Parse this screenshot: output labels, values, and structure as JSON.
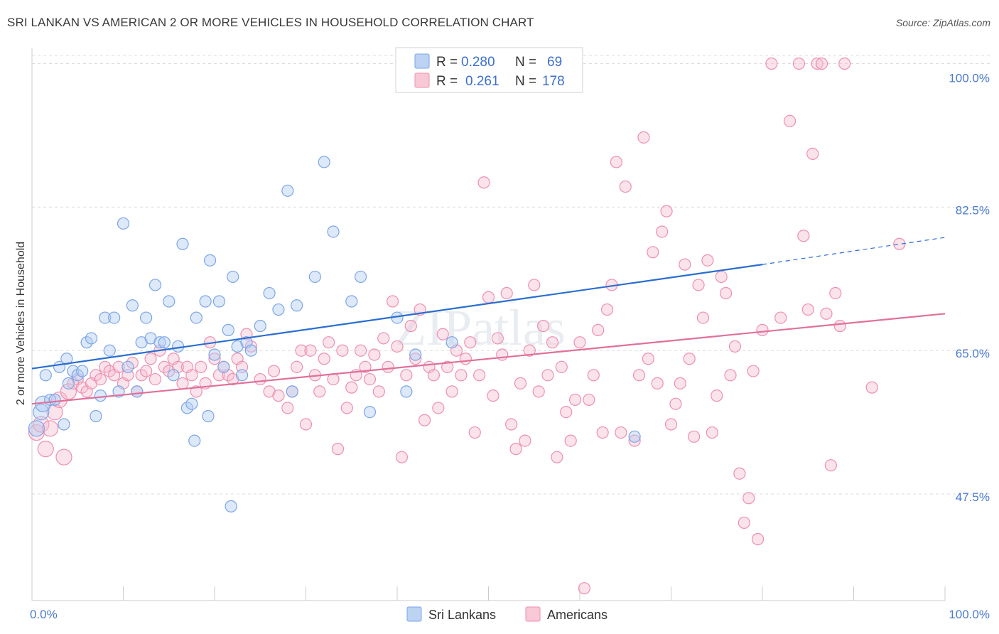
{
  "title": "SRI LANKAN VS AMERICAN 2 OR MORE VEHICLES IN HOUSEHOLD CORRELATION CHART",
  "source": "Source: ZipAtlas.com",
  "watermark": "ZIPatlas",
  "legend_top": {
    "rows": [
      {
        "r_label": "R =",
        "r_value": "0.280",
        "n_label": "N =",
        "n_value": "69",
        "color": "#a9c4ef"
      },
      {
        "r_label": "R =",
        "r_value": "0.261",
        "n_label": "N =",
        "n_value": "178",
        "color": "#f4b3c8"
      }
    ]
  },
  "legend_bottom": [
    {
      "label": "Sri Lankans",
      "color": "#a9c4ef"
    },
    {
      "label": "Americans",
      "color": "#f4b3c8"
    }
  ],
  "chart_data": {
    "type": "scatter",
    "title": "SRI LANKAN VS AMERICAN 2 OR MORE VEHICLES IN HOUSEHOLD CORRELATION CHART",
    "xlabel": "",
    "ylabel": "2 or more Vehicles in Household",
    "xlim": [
      0,
      100
    ],
    "ylim": [
      34.5,
      101
    ],
    "x_tick_labels": [
      "0.0%",
      "100.0%"
    ],
    "y_ticks": [
      47.5,
      65.0,
      82.5,
      100.0
    ],
    "y_tick_labels": [
      "47.5%",
      "65.0%",
      "82.5%",
      "100.0%"
    ],
    "grid": true,
    "colors": {
      "sri_lankans": "#7aa6e8",
      "americans": "#ee8fb0",
      "sri_line": "#2a6dd0",
      "am_line": "#e0709a"
    },
    "series": [
      {
        "name": "Sri Lankans",
        "trend": {
          "x0": 0,
          "y0": 62.8,
          "x1": 80,
          "y1": 75.5,
          "dash_x1": 100,
          "dash_y1": 78.8
        },
        "points": [
          [
            0.5,
            55.5
          ],
          [
            1,
            57.5
          ],
          [
            1.2,
            58.5
          ],
          [
            1.5,
            62
          ],
          [
            2,
            59
          ],
          [
            2.5,
            59
          ],
          [
            3,
            63
          ],
          [
            3.5,
            56
          ],
          [
            3.8,
            64
          ],
          [
            4,
            61
          ],
          [
            4.5,
            62.5
          ],
          [
            5,
            62
          ],
          [
            5.5,
            62.5
          ],
          [
            6,
            66
          ],
          [
            6.5,
            66.5
          ],
          [
            7,
            57
          ],
          [
            7.5,
            59.5
          ],
          [
            8,
            69
          ],
          [
            8.5,
            65
          ],
          [
            9,
            69
          ],
          [
            9.5,
            60
          ],
          [
            10,
            80.5
          ],
          [
            10.5,
            63
          ],
          [
            11,
            70.5
          ],
          [
            11.5,
            60
          ],
          [
            12,
            66
          ],
          [
            12.5,
            69
          ],
          [
            13,
            66.5
          ],
          [
            13.5,
            73
          ],
          [
            14,
            66
          ],
          [
            14.5,
            66
          ],
          [
            15,
            71
          ],
          [
            15.5,
            62
          ],
          [
            16,
            65.5
          ],
          [
            16.5,
            78
          ],
          [
            17,
            58
          ],
          [
            17.5,
            58.5
          ],
          [
            17.8,
            54
          ],
          [
            18,
            69
          ],
          [
            19,
            71
          ],
          [
            19.3,
            57
          ],
          [
            19.5,
            76
          ],
          [
            20,
            64.5
          ],
          [
            20.5,
            71
          ],
          [
            21,
            63
          ],
          [
            21.5,
            67.5
          ],
          [
            21.8,
            46
          ],
          [
            22,
            74
          ],
          [
            22.5,
            65.5
          ],
          [
            23,
            62
          ],
          [
            23.5,
            66
          ],
          [
            24,
            65
          ],
          [
            25,
            68
          ],
          [
            26,
            72
          ],
          [
            27,
            70
          ],
          [
            28,
            84.5
          ],
          [
            28.5,
            60
          ],
          [
            29,
            70.5
          ],
          [
            31,
            74
          ],
          [
            32,
            88
          ],
          [
            33,
            79.5
          ],
          [
            35,
            71
          ],
          [
            36,
            74
          ],
          [
            37,
            57.5
          ],
          [
            40,
            69
          ],
          [
            41,
            60
          ],
          [
            42,
            64.5
          ],
          [
            46,
            66
          ],
          [
            66,
            54.5
          ]
        ]
      },
      {
        "name": "Americans",
        "trend": {
          "x0": 0,
          "y0": 58.5,
          "x1": 100,
          "y1": 69.5
        },
        "points": [
          [
            0.5,
            55
          ],
          [
            1,
            56
          ],
          [
            1.5,
            53
          ],
          [
            2,
            55.5
          ],
          [
            2.5,
            57.5
          ],
          [
            3,
            59
          ],
          [
            3.5,
            52
          ],
          [
            4,
            60
          ],
          [
            4.5,
            61
          ],
          [
            5,
            61.5
          ],
          [
            5.5,
            60.5
          ],
          [
            6,
            60
          ],
          [
            6.5,
            61
          ],
          [
            7,
            62
          ],
          [
            7.5,
            61.5
          ],
          [
            8,
            63
          ],
          [
            8.5,
            62.5
          ],
          [
            9,
            62
          ],
          [
            9.5,
            63
          ],
          [
            10,
            61
          ],
          [
            10.5,
            62
          ],
          [
            11,
            63.5
          ],
          [
            11.5,
            60
          ],
          [
            12,
            62
          ],
          [
            12.5,
            62.5
          ],
          [
            13,
            64
          ],
          [
            13.5,
            61.5
          ],
          [
            14,
            65
          ],
          [
            14.5,
            63
          ],
          [
            15,
            62.5
          ],
          [
            15.5,
            64
          ],
          [
            16,
            63
          ],
          [
            16.5,
            61
          ],
          [
            17,
            63
          ],
          [
            17.5,
            62
          ],
          [
            18,
            60
          ],
          [
            18.5,
            63
          ],
          [
            19,
            61
          ],
          [
            19.5,
            66
          ],
          [
            20,
            64
          ],
          [
            20.5,
            62
          ],
          [
            21,
            63
          ],
          [
            21.5,
            62
          ],
          [
            22,
            61.5
          ],
          [
            22.5,
            64
          ],
          [
            23,
            63
          ],
          [
            23.5,
            67
          ],
          [
            24,
            65.5
          ],
          [
            25,
            61.5
          ],
          [
            26,
            60
          ],
          [
            26.5,
            62.5
          ],
          [
            27,
            59.5
          ],
          [
            28,
            58
          ],
          [
            28.5,
            60
          ],
          [
            29,
            63
          ],
          [
            29.5,
            65
          ],
          [
            30,
            56
          ],
          [
            30.5,
            65
          ],
          [
            31,
            62
          ],
          [
            31.5,
            60
          ],
          [
            32,
            64
          ],
          [
            32.5,
            66
          ],
          [
            33,
            61.5
          ],
          [
            33.5,
            53
          ],
          [
            34,
            65
          ],
          [
            34.5,
            58
          ],
          [
            35,
            60.5
          ],
          [
            35.5,
            62
          ],
          [
            36,
            65
          ],
          [
            36.5,
            63
          ],
          [
            37,
            61.5
          ],
          [
            37.5,
            64.5
          ],
          [
            38,
            60
          ],
          [
            38.5,
            66.5
          ],
          [
            39,
            63
          ],
          [
            39.5,
            71
          ],
          [
            40,
            65.5
          ],
          [
            40.5,
            52
          ],
          [
            41,
            62
          ],
          [
            41.5,
            68
          ],
          [
            42,
            64
          ],
          [
            42.5,
            70
          ],
          [
            43,
            56.5
          ],
          [
            43.5,
            63
          ],
          [
            44,
            62
          ],
          [
            44.5,
            58
          ],
          [
            45,
            67
          ],
          [
            45.5,
            63
          ],
          [
            46,
            60
          ],
          [
            46.5,
            65
          ],
          [
            47,
            62
          ],
          [
            47.5,
            64
          ],
          [
            48,
            66
          ],
          [
            48.5,
            55
          ],
          [
            49,
            62
          ],
          [
            49.5,
            85.5
          ],
          [
            50,
            71.5
          ],
          [
            50.5,
            59.5
          ],
          [
            51,
            66.5
          ],
          [
            51.5,
            64.5
          ],
          [
            52,
            72
          ],
          [
            52.5,
            56
          ],
          [
            53,
            53
          ],
          [
            53.5,
            61
          ],
          [
            54,
            54
          ],
          [
            54.5,
            65
          ],
          [
            55,
            73
          ],
          [
            55.5,
            60
          ],
          [
            56,
            68
          ],
          [
            56.5,
            62
          ],
          [
            57,
            66
          ],
          [
            57.5,
            52
          ],
          [
            58,
            63
          ],
          [
            58.5,
            57.5
          ],
          [
            59,
            54
          ],
          [
            59.5,
            59
          ],
          [
            60,
            66
          ],
          [
            60.5,
            36
          ],
          [
            61,
            59
          ],
          [
            61.5,
            62
          ],
          [
            62,
            67.5
          ],
          [
            62.5,
            55
          ],
          [
            63,
            70
          ],
          [
            63.5,
            73
          ],
          [
            64,
            88
          ],
          [
            64.5,
            55
          ],
          [
            65,
            85
          ],
          [
            66,
            54
          ],
          [
            66.5,
            62
          ],
          [
            67,
            91
          ],
          [
            67.5,
            64
          ],
          [
            68,
            77
          ],
          [
            68.5,
            61
          ],
          [
            69,
            79.5
          ],
          [
            69.5,
            82
          ],
          [
            70,
            56
          ],
          [
            70.5,
            58.5
          ],
          [
            71,
            61
          ],
          [
            71.5,
            75.5
          ],
          [
            72,
            64
          ],
          [
            72.5,
            54.5
          ],
          [
            73,
            73
          ],
          [
            73.5,
            69
          ],
          [
            74,
            76
          ],
          [
            74.5,
            55
          ],
          [
            75,
            59.5
          ],
          [
            75.5,
            74
          ],
          [
            76,
            72
          ],
          [
            76.5,
            62
          ],
          [
            77,
            65.5
          ],
          [
            77.5,
            50
          ],
          [
            78,
            44
          ],
          [
            78.5,
            47
          ],
          [
            79,
            62.5
          ],
          [
            79.5,
            42
          ],
          [
            80,
            67.5
          ],
          [
            81,
            100
          ],
          [
            82,
            69
          ],
          [
            83,
            93
          ],
          [
            84,
            100
          ],
          [
            84.5,
            79
          ],
          [
            85,
            70
          ],
          [
            85.5,
            89
          ],
          [
            86,
            100
          ],
          [
            86.5,
            100
          ],
          [
            87,
            69.5
          ],
          [
            87.5,
            51
          ],
          [
            88,
            72
          ],
          [
            88.5,
            68
          ],
          [
            89,
            100
          ],
          [
            92,
            60.5
          ],
          [
            95,
            78
          ]
        ]
      }
    ]
  }
}
